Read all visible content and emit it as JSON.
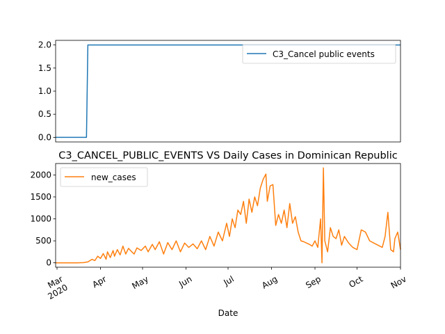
{
  "chart_data": [
    {
      "type": "line",
      "title": "",
      "xlabel": "",
      "ylabel": "",
      "xlim": [
        "2020-02-29",
        "2020-11-01"
      ],
      "ylim": [
        -0.1,
        2.1
      ],
      "yticks": [
        0.0,
        0.5,
        1.0,
        1.5,
        2.0
      ],
      "ytick_labels": [
        "0.0",
        "0.5",
        "1.0",
        "1.5",
        "2.0"
      ],
      "legend_position": "upper right",
      "grid": false,
      "series": [
        {
          "name": "C3_Cancel public events",
          "color": "#1f77b4",
          "x": [
            "2020-02-29",
            "2020-03-22",
            "2020-03-23",
            "2020-11-01"
          ],
          "y": [
            0,
            0,
            2,
            2
          ]
        }
      ]
    },
    {
      "type": "line",
      "title": "C3_CANCEL_PUBLIC_EVENTS VS Daily Cases in Dominican Republic",
      "xlabel": "Date",
      "ylabel": "",
      "xlim": [
        "2020-02-29",
        "2020-11-01"
      ],
      "ylim": [
        -100,
        2260
      ],
      "yticks": [
        0,
        500,
        1000,
        1500,
        2000
      ],
      "ytick_labels": [
        "0",
        "500",
        "1000",
        "1500",
        "2000"
      ],
      "xticks": [
        "2020-03-01",
        "2020-04-01",
        "2020-05-01",
        "2020-06-01",
        "2020-07-01",
        "2020-08-01",
        "2020-09-01",
        "2020-10-01",
        "2020-11-01"
      ],
      "xtick_labels": [
        "Mar\n2020",
        "Apr",
        "May",
        "Jun",
        "Jul",
        "Aug",
        "Sep",
        "Oct",
        "Nov"
      ],
      "legend_position": "upper left",
      "grid": false,
      "series": [
        {
          "name": "new_cases",
          "color": "#ff7f0e",
          "x": [
            "2020-02-29",
            "2020-03-05",
            "2020-03-10",
            "2020-03-15",
            "2020-03-20",
            "2020-03-23",
            "2020-03-26",
            "2020-03-28",
            "2020-03-30",
            "2020-04-01",
            "2020-04-03",
            "2020-04-05",
            "2020-04-06",
            "2020-04-08",
            "2020-04-10",
            "2020-04-11",
            "2020-04-13",
            "2020-04-15",
            "2020-04-17",
            "2020-04-19",
            "2020-04-21",
            "2020-04-23",
            "2020-04-25",
            "2020-04-27",
            "2020-04-30",
            "2020-05-03",
            "2020-05-05",
            "2020-05-08",
            "2020-05-10",
            "2020-05-13",
            "2020-05-16",
            "2020-05-19",
            "2020-05-22",
            "2020-05-25",
            "2020-05-28",
            "2020-05-31",
            "2020-06-03",
            "2020-06-06",
            "2020-06-09",
            "2020-06-12",
            "2020-06-15",
            "2020-06-18",
            "2020-06-21",
            "2020-06-24",
            "2020-06-27",
            "2020-06-30",
            "2020-07-02",
            "2020-07-04",
            "2020-07-06",
            "2020-07-08",
            "2020-07-10",
            "2020-07-12",
            "2020-07-14",
            "2020-07-16",
            "2020-07-18",
            "2020-07-20",
            "2020-07-22",
            "2020-07-24",
            "2020-07-26",
            "2020-07-28",
            "2020-07-29",
            "2020-07-31",
            "2020-08-02",
            "2020-08-04",
            "2020-08-06",
            "2020-08-08",
            "2020-08-10",
            "2020-08-12",
            "2020-08-14",
            "2020-08-16",
            "2020-08-18",
            "2020-08-20",
            "2020-08-22",
            "2020-08-24",
            "2020-08-26",
            "2020-08-28",
            "2020-08-30",
            "2020-09-01",
            "2020-09-03",
            "2020-09-05",
            "2020-09-06",
            "2020-09-07",
            "2020-09-08",
            "2020-09-10",
            "2020-09-12",
            "2020-09-14",
            "2020-09-16",
            "2020-09-18",
            "2020-09-20",
            "2020-09-22",
            "2020-09-25",
            "2020-09-28",
            "2020-10-01",
            "2020-10-04",
            "2020-10-07",
            "2020-10-10",
            "2020-10-13",
            "2020-10-16",
            "2020-10-19",
            "2020-10-21",
            "2020-10-23",
            "2020-10-25",
            "2020-10-27",
            "2020-10-28",
            "2020-10-30",
            "2020-11-01"
          ],
          "y": [
            0,
            0,
            0,
            0,
            5,
            20,
            80,
            50,
            150,
            100,
            210,
            80,
            250,
            120,
            280,
            150,
            300,
            180,
            380,
            200,
            330,
            260,
            200,
            340,
            280,
            380,
            250,
            420,
            300,
            480,
            200,
            460,
            300,
            500,
            250,
            450,
            350,
            430,
            320,
            500,
            300,
            600,
            380,
            700,
            500,
            900,
            600,
            1000,
            800,
            1200,
            1100,
            1400,
            900,
            1450,
            1150,
            1500,
            1300,
            1700,
            1900,
            2020,
            1400,
            1750,
            1780,
            850,
            1100,
            900,
            1200,
            800,
            1350,
            900,
            1050,
            700,
            500,
            480,
            450,
            420,
            380,
            500,
            350,
            1000,
            0,
            2160,
            500,
            250,
            800,
            600,
            550,
            750,
            400,
            600,
            450,
            350,
            300,
            750,
            700,
            500,
            450,
            400,
            350,
            600,
            1150,
            300,
            250,
            550,
            700,
            300
          ]
        }
      ]
    }
  ]
}
